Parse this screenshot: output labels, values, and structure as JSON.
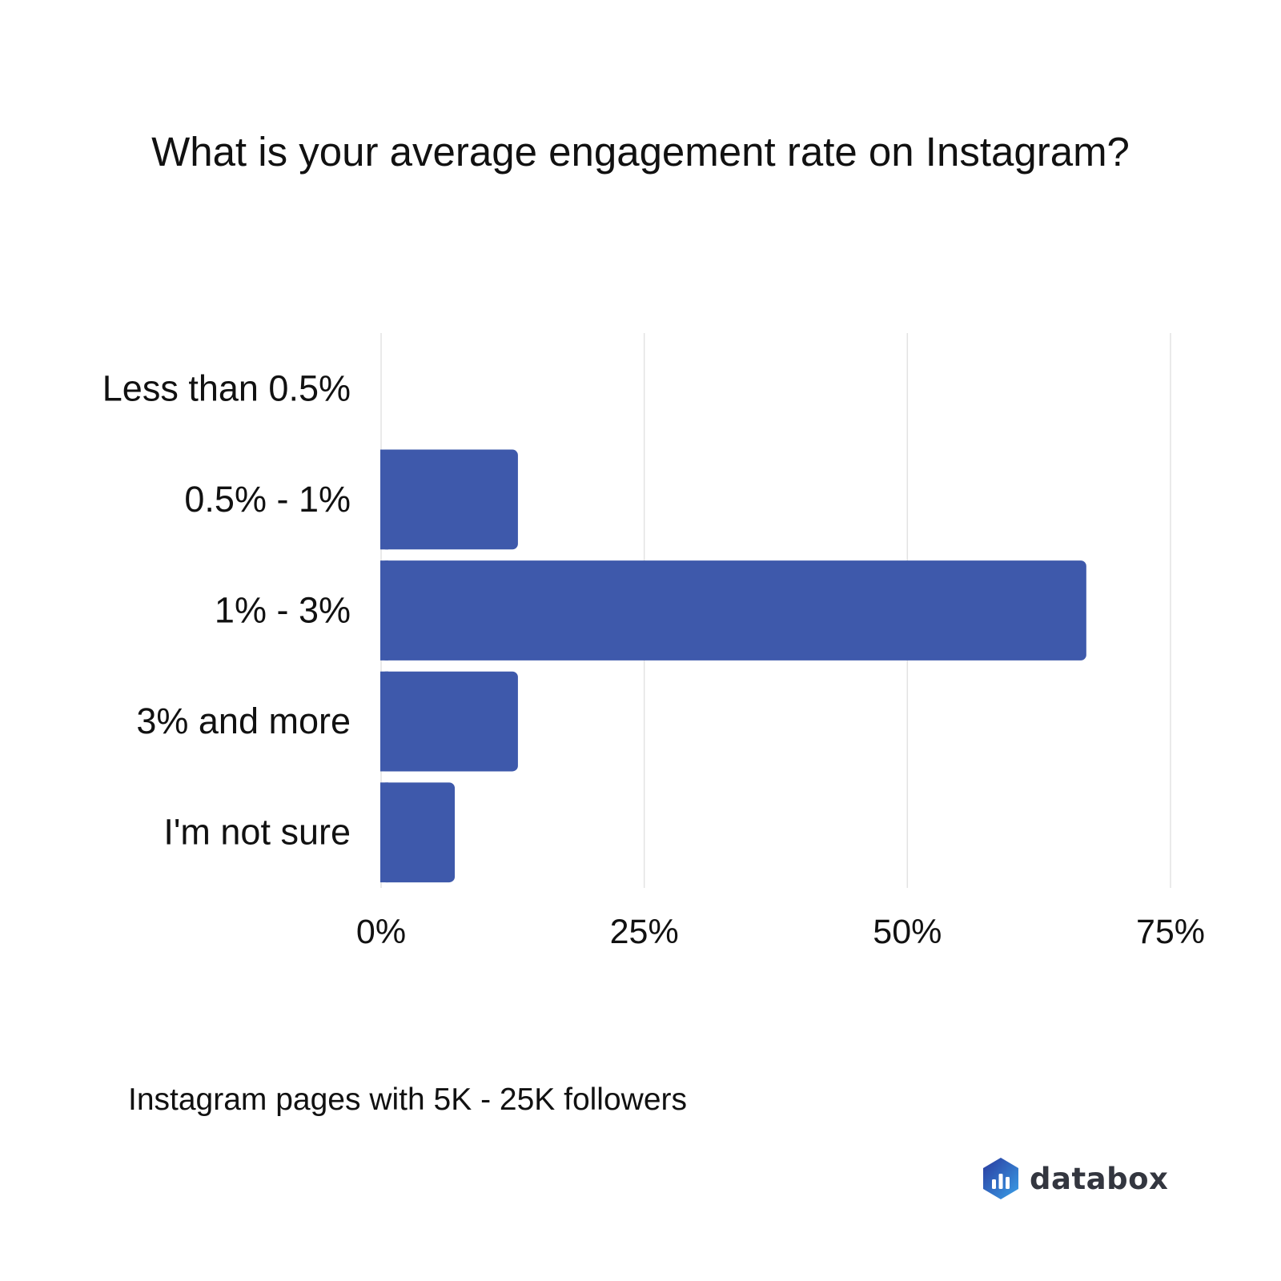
{
  "colors": {
    "bar": "#3e59ab",
    "grid": "#e3e3e3",
    "text": "#111111",
    "brand_dark": "#2a3a9e",
    "brand_light": "#3aa0e8"
  },
  "chart_data": {
    "type": "bar",
    "orientation": "horizontal",
    "title": "What is your average engagement rate on Instagram?",
    "categories": [
      "Less than 0.5%",
      "0.5% - 1%",
      "1% - 3%",
      "3% and more",
      "I'm not sure"
    ],
    "values": [
      0,
      13,
      67,
      13,
      7
    ],
    "xlim": [
      0,
      75
    ],
    "xticks": [
      0,
      25,
      50,
      75
    ],
    "xtick_labels": [
      "0%",
      "25%",
      "50%",
      "75%"
    ],
    "xlabel": "",
    "ylabel": "",
    "grid": true,
    "legend": "none"
  },
  "caption": "Instagram pages with 5K - 25K followers",
  "logo": {
    "icon": "databox-hexagon-icon",
    "text": "databox"
  }
}
